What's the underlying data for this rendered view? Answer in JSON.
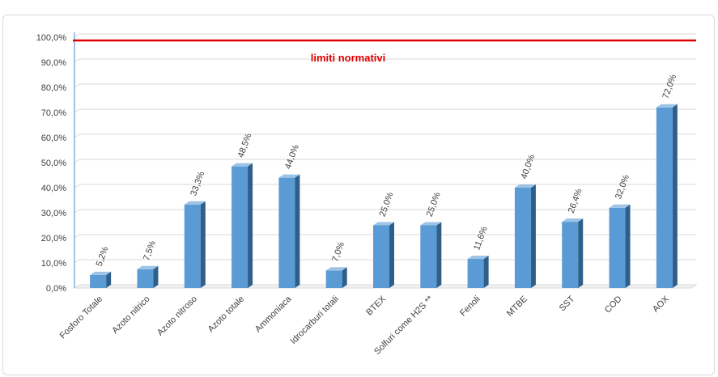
{
  "chart_data": {
    "type": "bar",
    "categories": [
      "Fosforo Totale",
      "Azoto nitrico",
      "Azoto nitroso",
      "Azoto totale",
      "Ammoniaca",
      "Idrocarburi totali",
      "BTEX",
      "Solfuri come H2S **",
      "Fenoli",
      "MTBE",
      "SST",
      "COD",
      "AOX"
    ],
    "values": [
      5.2,
      7.5,
      33.3,
      48.5,
      44.0,
      7.0,
      25.0,
      25.0,
      11.6,
      40.0,
      26.4,
      32.0,
      72.0
    ],
    "data_labels": [
      "5,2%",
      "7,5%",
      "33,3%",
      "48,5%",
      "44,0%",
      "7,0%",
      "25,0%",
      "25,0%",
      "11,6%",
      "40,0%",
      "26,4%",
      "32,0%",
      "72,0%"
    ],
    "y_ticks": [
      "0,0%",
      "10,0%",
      "20,0%",
      "30,0%",
      "40,0%",
      "50,0%",
      "60,0%",
      "70,0%",
      "80,0%",
      "90,0%",
      "100,0%"
    ],
    "ylim": [
      0,
      100
    ],
    "grid": true,
    "title": "",
    "xlabel": "",
    "ylabel": "",
    "bar_3d": true,
    "reference_line": {
      "value": 100,
      "label": "limiti normativi",
      "color": "#e00000"
    },
    "colors": {
      "bar_front": "#5b9bd5",
      "bar_side": "#2e5f8a",
      "bar_top": "#9dc3e6",
      "gridline": "#d9d9d9",
      "axis_wall": "#9dc3e6"
    }
  }
}
